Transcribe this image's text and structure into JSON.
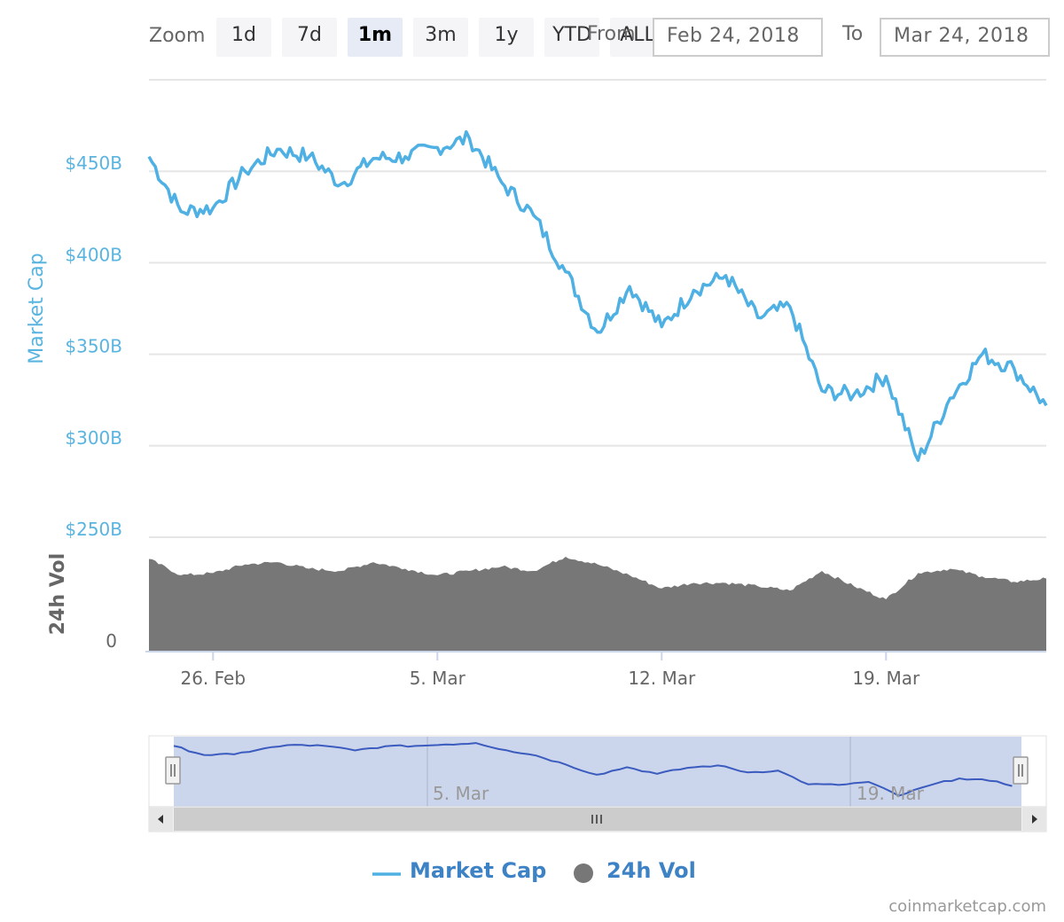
{
  "toolbar": {
    "zoom_label": "Zoom",
    "buttons": [
      "1d",
      "7d",
      "1m",
      "3m",
      "1y",
      "YTD",
      "ALL"
    ],
    "active_button": "1m",
    "from_label": "From",
    "to_label": "To",
    "from_date": "Feb 24, 2018",
    "to_date": "Mar 24, 2018"
  },
  "colors": {
    "line": "#4fb0e3",
    "volume": "#777777",
    "navigator_line": "#3b5bbf",
    "navigator_mask": "#cbd6ec",
    "axis_label": "#5ab4e0"
  },
  "legend": {
    "market_cap": "Market Cap",
    "volume": "24h Vol"
  },
  "credits": "coinmarketcap.com",
  "chart_data": {
    "type": "line",
    "title": "",
    "x": [
      "Feb 24",
      "Feb 25",
      "Feb 26",
      "Feb 27",
      "Feb 28",
      "Mar 1",
      "Mar 2",
      "Mar 3",
      "Mar 4",
      "Mar 5",
      "Mar 6",
      "Mar 7",
      "Mar 8",
      "Mar 9",
      "Mar 10",
      "Mar 11",
      "Mar 12",
      "Mar 13",
      "Mar 14",
      "Mar 15",
      "Mar 16",
      "Mar 17",
      "Mar 18",
      "Mar 19",
      "Mar 20",
      "Mar 21",
      "Mar 22",
      "Mar 23",
      "Mar 24"
    ],
    "series": [
      {
        "name": "Market Cap",
        "unit": "USD billions",
        "values": [
          458,
          428,
          430,
          450,
          462,
          458,
          443,
          457,
          458,
          463,
          468,
          444,
          426,
          395,
          362,
          387,
          365,
          385,
          393,
          370,
          376,
          330,
          328,
          338,
          292,
          326,
          350,
          342,
          322
        ]
      },
      {
        "name": "24h Vol",
        "unit": "relative",
        "values": [
          0.85,
          0.7,
          0.72,
          0.8,
          0.82,
          0.76,
          0.74,
          0.82,
          0.76,
          0.7,
          0.74,
          0.78,
          0.74,
          0.87,
          0.8,
          0.7,
          0.58,
          0.63,
          0.63,
          0.6,
          0.56,
          0.74,
          0.6,
          0.48,
          0.72,
          0.76,
          0.69,
          0.64,
          0.67
        ]
      }
    ],
    "ylabel": "Market Cap",
    "ylabel_volume": "24h Vol",
    "y_ticks": [
      "$250B",
      "$300B",
      "$350B",
      "$400B",
      "$450B"
    ],
    "ylim": [
      250,
      500
    ],
    "volume_ticks": [
      "0"
    ],
    "x_ticks": [
      "26. Feb",
      "5. Mar",
      "12. Mar",
      "19. Mar"
    ],
    "navigator_ticks": [
      "5. Mar",
      "19. Mar"
    ],
    "grid": true,
    "legend_position": "bottom-center"
  }
}
